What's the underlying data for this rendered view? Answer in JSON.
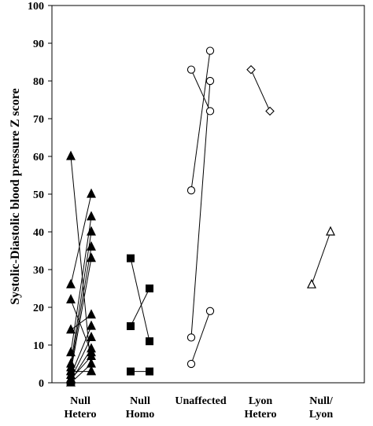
{
  "chart_data": {
    "type": "scatter",
    "title": "",
    "xlabel": "",
    "ylabel": "Systolic-Diastolic blood pressure Z score",
    "ylim": [
      0,
      100
    ],
    "yticks": [
      0,
      10,
      20,
      30,
      40,
      50,
      60,
      70,
      80,
      90,
      100
    ],
    "categories": [
      {
        "key": "null_hetero",
        "lines": [
          "Null",
          "Hetero"
        ]
      },
      {
        "key": "null_homo",
        "lines": [
          "Null",
          "Homo"
        ]
      },
      {
        "key": "unaffected",
        "lines": [
          "Unaffected"
        ]
      },
      {
        "key": "lyon_hetero",
        "lines": [
          "Lyon",
          "Hetero"
        ]
      },
      {
        "key": "null_lyon",
        "lines": [
          "Null/",
          "Lyon"
        ]
      }
    ],
    "groups": [
      {
        "category": "null_hetero",
        "marker": "triangle-filled",
        "pairs": [
          [
            60,
            3
          ],
          [
            26,
            50
          ],
          [
            22,
            8
          ],
          [
            14,
            18
          ],
          [
            8,
            44
          ],
          [
            5,
            40
          ],
          [
            4,
            36
          ],
          [
            3,
            33
          ],
          [
            2,
            15
          ],
          [
            1,
            12
          ],
          [
            0.5,
            9
          ],
          [
            1,
            7
          ],
          [
            0,
            5
          ],
          [
            3,
            3
          ]
        ]
      },
      {
        "category": "null_homo",
        "marker": "square-filled",
        "pairs": [
          [
            33,
            11
          ],
          [
            15,
            25
          ],
          [
            3,
            3
          ]
        ]
      },
      {
        "category": "unaffected",
        "marker": "circle-open",
        "pairs": [
          [
            83,
            72
          ],
          [
            51,
            88
          ],
          [
            12,
            80
          ],
          [
            5,
            19
          ]
        ]
      },
      {
        "category": "lyon_hetero",
        "marker": "diamond-open",
        "pairs": [
          [
            83,
            72
          ]
        ]
      },
      {
        "category": "null_lyon",
        "marker": "triangle-open",
        "pairs": [
          [
            26,
            40
          ]
        ]
      }
    ],
    "grid": false,
    "legend": "none"
  },
  "colors": {
    "ink": "#000000",
    "background": "#ffffff"
  }
}
